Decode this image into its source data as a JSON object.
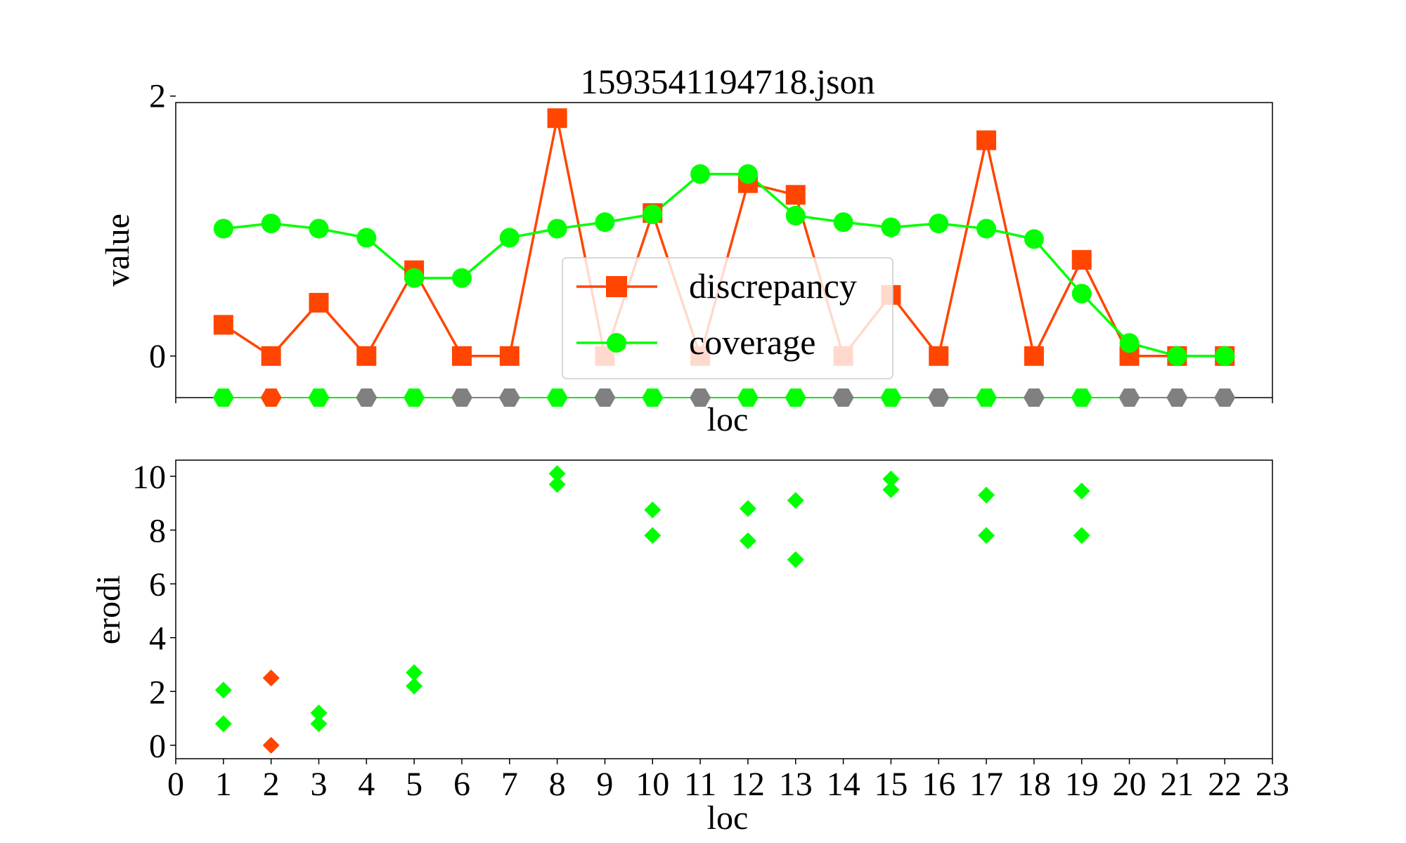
{
  "colors": {
    "discrepancy": "#ff4500",
    "coverage": "#00ff00",
    "neutral": "#808080",
    "legend_border": "#cccccc"
  },
  "chart_data": [
    {
      "type": "line",
      "title": "1593541194718.json",
      "xlabel": "loc",
      "ylabel": "value",
      "xlim": [
        0,
        23
      ],
      "ylim": [
        -0.32,
        1.95
      ],
      "yticks": [
        0,
        2
      ],
      "x": [
        1,
        2,
        3,
        4,
        5,
        6,
        7,
        8,
        9,
        10,
        11,
        12,
        13,
        14,
        15,
        16,
        17,
        18,
        19,
        20,
        21,
        22
      ],
      "legend": {
        "location": "center",
        "entries": [
          "discrepancy",
          "coverage"
        ]
      },
      "series": [
        {
          "name": "discrepancy",
          "marker": "square",
          "color": "#ff4500",
          "values": [
            0.24,
            0.0,
            0.41,
            0.0,
            0.66,
            0.0,
            0.0,
            1.83,
            0.0,
            1.1,
            0.0,
            1.33,
            1.24,
            0.0,
            0.47,
            0.0,
            1.66,
            0.0,
            0.74,
            0.0,
            0.0,
            0.0
          ]
        },
        {
          "name": "coverage",
          "marker": "circle",
          "color": "#00ff00",
          "values": [
            0.98,
            1.02,
            0.98,
            0.91,
            0.6,
            0.6,
            0.91,
            0.98,
            1.03,
            1.09,
            1.4,
            1.4,
            1.08,
            1.03,
            0.99,
            1.02,
            0.98,
            0.9,
            0.48,
            0.1,
            0.0,
            0.0
          ]
        }
      ],
      "status_row": {
        "y": -0.32,
        "marker": "hexagon",
        "colors": [
          "#00ff00",
          "#ff4500",
          "#00ff00",
          "#808080",
          "#00ff00",
          "#808080",
          "#808080",
          "#00ff00",
          "#808080",
          "#00ff00",
          "#808080",
          "#00ff00",
          "#00ff00",
          "#808080",
          "#00ff00",
          "#808080",
          "#00ff00",
          "#808080",
          "#00ff00",
          "#808080",
          "#808080",
          "#808080"
        ]
      }
    },
    {
      "type": "scatter",
      "xlabel": "loc",
      "ylabel": "erodi",
      "xlim": [
        0,
        23
      ],
      "ylim": [
        -0.5,
        10.6
      ],
      "xticks": [
        0,
        1,
        2,
        3,
        4,
        5,
        6,
        7,
        8,
        9,
        10,
        11,
        12,
        13,
        14,
        15,
        16,
        17,
        18,
        19,
        20,
        21,
        22,
        23
      ],
      "yticks": [
        0,
        2,
        4,
        6,
        8,
        10
      ],
      "marker": "diamond",
      "points": [
        {
          "x": 1,
          "y": 2.05,
          "color": "#00ff00"
        },
        {
          "x": 1,
          "y": 0.8,
          "color": "#00ff00"
        },
        {
          "x": 2,
          "y": 2.5,
          "color": "#ff4500"
        },
        {
          "x": 2,
          "y": 0.0,
          "color": "#ff4500"
        },
        {
          "x": 3,
          "y": 1.2,
          "color": "#00ff00"
        },
        {
          "x": 3,
          "y": 0.8,
          "color": "#00ff00"
        },
        {
          "x": 5,
          "y": 2.7,
          "color": "#00ff00"
        },
        {
          "x": 5,
          "y": 2.2,
          "color": "#00ff00"
        },
        {
          "x": 8,
          "y": 10.1,
          "color": "#00ff00"
        },
        {
          "x": 8,
          "y": 9.7,
          "color": "#00ff00"
        },
        {
          "x": 10,
          "y": 8.75,
          "color": "#00ff00"
        },
        {
          "x": 10,
          "y": 7.8,
          "color": "#00ff00"
        },
        {
          "x": 12,
          "y": 8.8,
          "color": "#00ff00"
        },
        {
          "x": 12,
          "y": 7.6,
          "color": "#00ff00"
        },
        {
          "x": 13,
          "y": 9.1,
          "color": "#00ff00"
        },
        {
          "x": 13,
          "y": 6.9,
          "color": "#00ff00"
        },
        {
          "x": 15,
          "y": 9.9,
          "color": "#00ff00"
        },
        {
          "x": 15,
          "y": 9.5,
          "color": "#00ff00"
        },
        {
          "x": 17,
          "y": 9.3,
          "color": "#00ff00"
        },
        {
          "x": 17,
          "y": 7.8,
          "color": "#00ff00"
        },
        {
          "x": 19,
          "y": 9.45,
          "color": "#00ff00"
        },
        {
          "x": 19,
          "y": 7.8,
          "color": "#00ff00"
        }
      ]
    }
  ]
}
